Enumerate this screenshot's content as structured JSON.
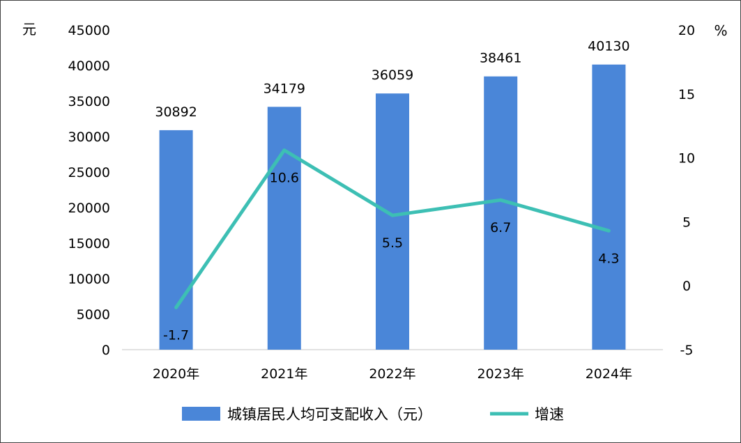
{
  "chart_data": {
    "type": "bar+line",
    "title": "",
    "categories": [
      "2020年",
      "2021年",
      "2022年",
      "2023年",
      "2024年"
    ],
    "series": [
      {
        "name": "城镇居民人均可支配收入（元）",
        "type": "bar",
        "axis": "left",
        "values": [
          30892,
          34179,
          36059,
          38461,
          40130
        ],
        "data_labels": [
          "30892",
          "34179",
          "36059",
          "38461",
          "40130"
        ],
        "color": "#4a86d8"
      },
      {
        "name": "增速",
        "type": "line",
        "axis": "right",
        "values": [
          -1.7,
          10.6,
          5.5,
          6.7,
          4.3
        ],
        "data_labels": [
          "-1.7",
          "10.6",
          "5.5",
          "6.7",
          "4.3"
        ],
        "color": "#3dbfb4"
      }
    ],
    "y_left": {
      "unit": "元",
      "ylim": [
        0,
        45000
      ],
      "ticks": [
        "0",
        "5000",
        "10000",
        "15000",
        "20000",
        "25000",
        "30000",
        "35000",
        "40000",
        "45000"
      ]
    },
    "y_right": {
      "unit": "%",
      "ylim": [
        -5,
        20
      ],
      "ticks": [
        "-5",
        "0",
        "5",
        "10",
        "15",
        "20"
      ]
    },
    "grid": false,
    "legend_position": "bottom"
  }
}
